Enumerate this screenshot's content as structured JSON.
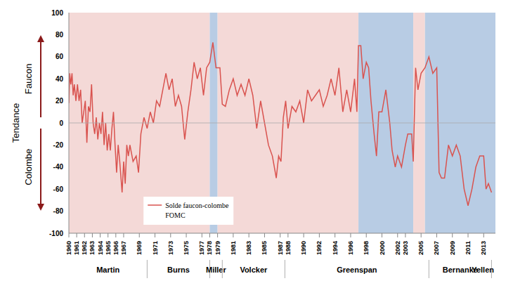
{
  "chart_data": {
    "type": "line",
    "y_label": "Tendance",
    "hawk_label": "Faucon",
    "dove_label": "Colombe",
    "legend": "lower left",
    "grid": false,
    "xlim": [
      1960,
      2014.5
    ],
    "xticks": [
      1960,
      1961,
      1962,
      1963,
      1964,
      1965,
      1966,
      1967,
      1969,
      1971,
      1973,
      1975,
      1977,
      1978,
      1979,
      1981,
      1983,
      1985,
      1987,
      1988,
      1990,
      1992,
      1994,
      1996,
      1998,
      2000,
      2002,
      2003,
      2005,
      2007,
      2009,
      2011,
      2013
    ],
    "ylim": [
      -100,
      100
    ],
    "yticks": [
      -100,
      -80,
      -60,
      -40,
      -20,
      0,
      20,
      40,
      60,
      80,
      100
    ],
    "shaded_periods": [
      {
        "x1": 1960,
        "x2": 1978,
        "color": "#f4d9d7"
      },
      {
        "x1": 1978,
        "x2": 1979,
        "color": "#b8cce4"
      },
      {
        "x1": 1979,
        "x2": 1997,
        "color": "#f4d9d7"
      },
      {
        "x1": 1997,
        "x2": 2004,
        "color": "#b8cce4"
      },
      {
        "x1": 2004,
        "x2": 2005.5,
        "color": "#f4d9d7"
      },
      {
        "x1": 2005.5,
        "x2": 2014.5,
        "color": "#b8cce4"
      }
    ],
    "chairs": [
      {
        "name": "Martin",
        "start": 1960,
        "end": 1970
      },
      {
        "name": "Burns",
        "start": 1970,
        "end": 1978
      },
      {
        "name": "Miller",
        "start": 1978,
        "end": 1979.6
      },
      {
        "name": "Volcker",
        "start": 1979.6,
        "end": 1987.6
      },
      {
        "name": "Greenspan",
        "start": 1987.6,
        "end": 2006
      },
      {
        "name": "Bernanke",
        "start": 2006,
        "end": 2014
      },
      {
        "name": "Yellen",
        "start": 2014,
        "end": 2014.5
      }
    ],
    "x": [
      1960.0,
      1960.1,
      1960.25,
      1960.4,
      1960.55,
      1960.7,
      1960.9,
      1961.1,
      1961.3,
      1961.5,
      1961.7,
      1961.9,
      1962.1,
      1962.3,
      1962.5,
      1962.7,
      1962.9,
      1963.1,
      1963.3,
      1963.5,
      1963.7,
      1963.9,
      1964.1,
      1964.3,
      1964.5,
      1964.7,
      1964.9,
      1965.1,
      1965.3,
      1965.5,
      1965.7,
      1965.9,
      1966.1,
      1966.3,
      1966.5,
      1966.8,
      1967.0,
      1967.2,
      1967.4,
      1967.6,
      1967.8,
      1968.2,
      1968.6,
      1968.9,
      1969.2,
      1969.6,
      1970.0,
      1970.4,
      1970.8,
      1971.2,
      1971.6,
      1972.0,
      1972.4,
      1972.8,
      1973.2,
      1973.6,
      1974.0,
      1974.4,
      1974.8,
      1975.2,
      1975.6,
      1976.0,
      1976.4,
      1976.8,
      1977.2,
      1977.6,
      1978.0,
      1978.4,
      1978.8,
      1979.3,
      1979.6,
      1980.0,
      1980.5,
      1981.0,
      1981.5,
      1982.0,
      1982.5,
      1983.0,
      1983.5,
      1984.0,
      1984.5,
      1985.0,
      1985.5,
      1986.0,
      1986.5,
      1986.8,
      1987.1,
      1987.4,
      1987.7,
      1988.0,
      1988.5,
      1989.0,
      1989.5,
      1990.0,
      1990.5,
      1991.0,
      1991.5,
      1992.0,
      1992.5,
      1993.0,
      1993.5,
      1994.0,
      1994.5,
      1995.0,
      1995.5,
      1996.0,
      1996.5,
      1996.8,
      1997.0,
      1997.3,
      1997.6,
      1998.0,
      1998.3,
      1998.6,
      1999.0,
      1999.3,
      1999.6,
      2000.0,
      2000.5,
      2001.0,
      2001.3,
      2001.7,
      2002.0,
      2002.5,
      2003.0,
      2003.3,
      2003.8,
      2004.0,
      2004.3,
      2004.6,
      2005.0,
      2005.5,
      2006.0,
      2006.5,
      2007.0,
      2007.3,
      2007.6,
      2008.0,
      2008.5,
      2009.0,
      2009.5,
      2010.0,
      2010.5,
      2011.0,
      2011.5,
      2012.0,
      2012.5,
      2013.0,
      2013.3,
      2013.6,
      2014.0
    ],
    "series": [
      {
        "name": "Solde faucon-colombe FOMC",
        "color": "#d9534f",
        "line_style": "solid",
        "values": [
          18,
          45,
          35,
          45,
          25,
          35,
          20,
          35,
          20,
          30,
          0,
          10,
          20,
          -18,
          15,
          10,
          35,
          0,
          -10,
          5,
          -15,
          0,
          -10,
          10,
          -20,
          0,
          -25,
          -10,
          -25,
          -5,
          10,
          -20,
          -45,
          -20,
          -35,
          -63,
          -35,
          -55,
          -20,
          -30,
          -20,
          -35,
          -30,
          -45,
          -10,
          5,
          -5,
          10,
          0,
          20,
          15,
          30,
          45,
          30,
          40,
          15,
          25,
          15,
          -15,
          10,
          30,
          55,
          40,
          50,
          25,
          50,
          55,
          73,
          50,
          50,
          17,
          15,
          30,
          40,
          25,
          35,
          25,
          40,
          25,
          -5,
          20,
          0,
          -20,
          -30,
          -50,
          -30,
          -35,
          5,
          20,
          -5,
          15,
          10,
          20,
          0,
          30,
          20,
          25,
          30,
          15,
          25,
          40,
          25,
          50,
          10,
          30,
          10,
          40,
          10,
          70,
          70,
          40,
          55,
          50,
          20,
          -10,
          -30,
          10,
          10,
          30,
          0,
          -25,
          -40,
          -30,
          -40,
          -20,
          -10,
          -10,
          -35,
          50,
          30,
          45,
          50,
          60,
          45,
          50,
          -45,
          -50,
          -50,
          -20,
          -30,
          -20,
          -30,
          -60,
          -75,
          -60,
          -40,
          -30,
          -30,
          -60,
          -55,
          -63
        ]
      }
    ]
  }
}
